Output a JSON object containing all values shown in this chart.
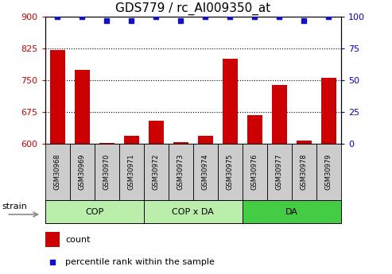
{
  "title": "GDS779 / rc_AI009350_at",
  "samples": [
    "GSM30968",
    "GSM30969",
    "GSM30970",
    "GSM30971",
    "GSM30972",
    "GSM30973",
    "GSM30974",
    "GSM30975",
    "GSM30976",
    "GSM30977",
    "GSM30978",
    "GSM30979"
  ],
  "bar_values": [
    820,
    775,
    602,
    618,
    655,
    604,
    618,
    800,
    668,
    738,
    607,
    755
  ],
  "dot_values": [
    100,
    100,
    97,
    97,
    100,
    97,
    100,
    100,
    100,
    100,
    97,
    100
  ],
  "bar_color": "#cc0000",
  "dot_color": "#1111cc",
  "ylim_left": [
    600,
    900
  ],
  "ylim_right": [
    0,
    100
  ],
  "yticks_left": [
    600,
    675,
    750,
    825,
    900
  ],
  "yticks_right": [
    0,
    25,
    50,
    75,
    100
  ],
  "grid_values": [
    675,
    750,
    825
  ],
  "groups": [
    {
      "label": "COP",
      "start": 0,
      "end": 3,
      "color": "#bbeeaa"
    },
    {
      "label": "COP x DA",
      "start": 4,
      "end": 7,
      "color": "#bbeeaa"
    },
    {
      "label": "DA",
      "start": 8,
      "end": 11,
      "color": "#44cc44"
    }
  ],
  "strain_label": "strain",
  "legend_count_label": "count",
  "legend_pct_label": "percentile rank within the sample",
  "tick_bg_color": "#cccccc",
  "plot_bg": "#ffffff",
  "title_fontsize": 11,
  "axis_color_left": "#cc0000",
  "axis_color_right": "#0000cc"
}
